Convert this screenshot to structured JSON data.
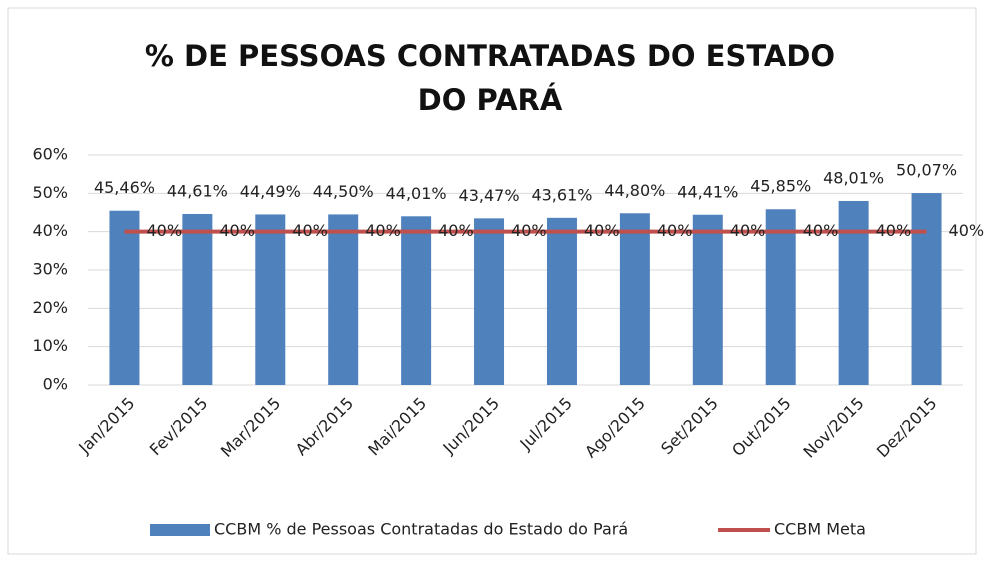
{
  "chart_data": {
    "type": "bar_line",
    "title": "% DE PESSOAS CONTRATADAS DO ESTADO DO PARÁ",
    "categories": [
      "Jan/2015",
      "Fev/2015",
      "Mar/2015",
      "Abr/2015",
      "Mai/2015",
      "Jun/2015",
      "Jul/2015",
      "Ago/2015",
      "Set/2015",
      "Out/2015",
      "Nov/2015",
      "Dez/2015"
    ],
    "series": [
      {
        "name": "CCBM % de Pessoas Contratadas do Estado do Pará",
        "type": "bar",
        "color": "#4f81bd",
        "values": [
          45.46,
          44.61,
          44.49,
          44.5,
          44.01,
          43.47,
          43.61,
          44.8,
          44.41,
          45.85,
          48.01,
          50.07
        ],
        "value_labels": [
          "45,46%",
          "44,61%",
          "44,49%",
          "44,50%",
          "44,01%",
          "43,47%",
          "43,61%",
          "44,80%",
          "44,41%",
          "45,85%",
          "48,01%",
          "50,07%"
        ]
      },
      {
        "name": "CCBM Meta",
        "type": "line",
        "color": "#c0504d",
        "values": [
          40,
          40,
          40,
          40,
          40,
          40,
          40,
          40,
          40,
          40,
          40,
          40
        ],
        "value_labels": [
          "40%",
          "40%",
          "40%",
          "40%",
          "40%",
          "40%",
          "40%",
          "40%",
          "40%",
          "40%",
          "40%",
          "40%"
        ]
      }
    ],
    "ylim": [
      0,
      60
    ],
    "yticks": [
      {
        "value": 0,
        "label": "0%"
      },
      {
        "value": 10,
        "label": "10%"
      },
      {
        "value": 20,
        "label": "20%"
      },
      {
        "value": 30,
        "label": "30%"
      },
      {
        "value": 40,
        "label": "40%"
      },
      {
        "value": 50,
        "label": "50%"
      },
      {
        "value": 60,
        "label": "60%"
      }
    ],
    "grid": true,
    "legend": "bottom"
  }
}
